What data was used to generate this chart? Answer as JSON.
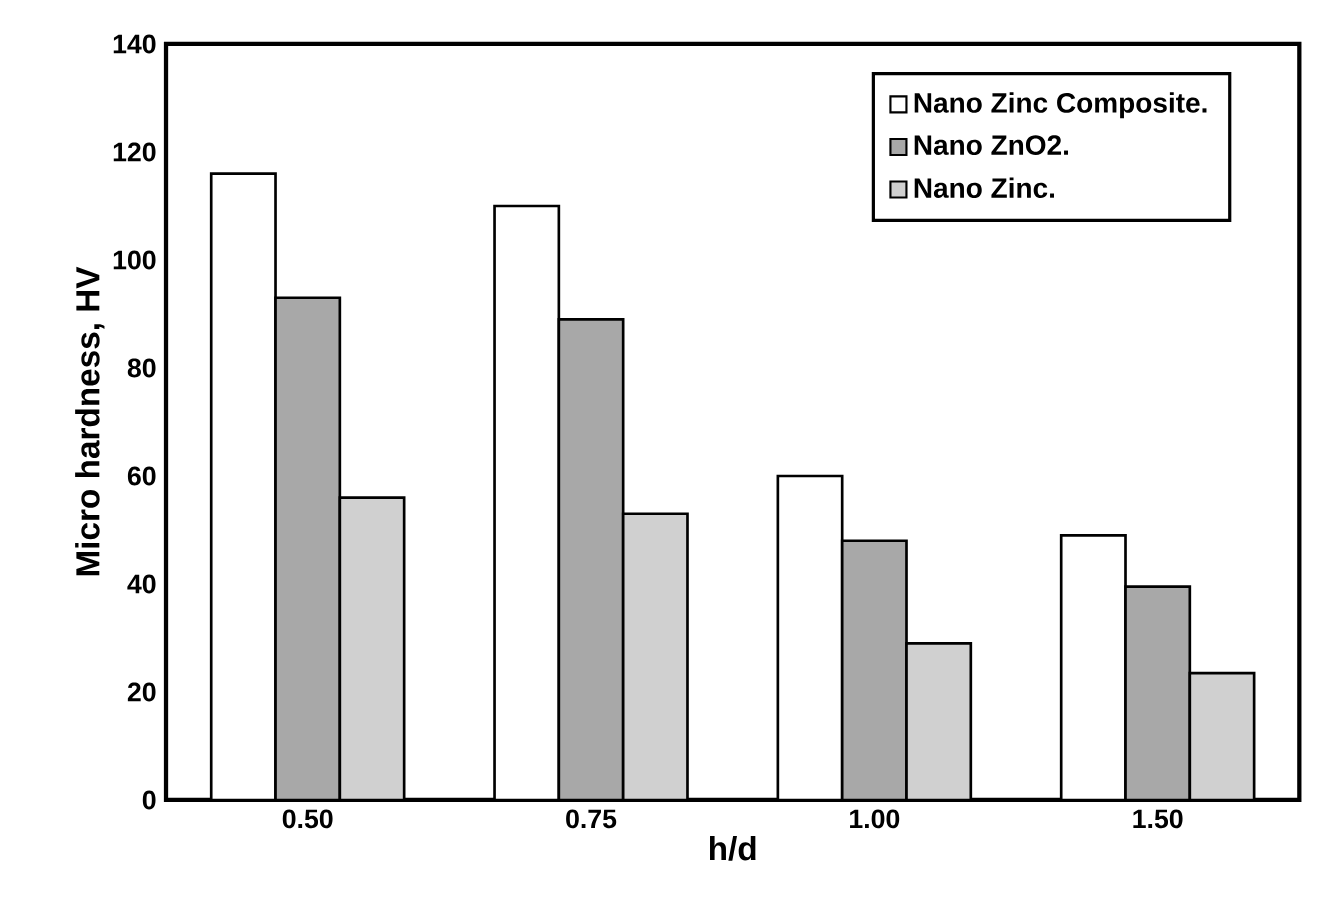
{
  "chart_data": {
    "type": "bar",
    "xlabel": "h/d",
    "ylabel": "Micro hardness, HV",
    "categories": [
      "0.50",
      "0.75",
      "1.00",
      "1.50"
    ],
    "series": [
      {
        "name": "Nano Zinc Composite.",
        "color": "#ffffff",
        "values": [
          116,
          110,
          60,
          49
        ]
      },
      {
        "name": "Nano ZnO2.",
        "color": "#a8a8a8",
        "values": [
          93,
          89,
          48,
          39.5
        ]
      },
      {
        "name": "Nano Zinc.",
        "color": "#d0d0d0",
        "values": [
          56,
          53,
          29,
          23.5
        ]
      }
    ],
    "ylim": [
      0,
      140
    ],
    "yticks": [
      0,
      20,
      40,
      60,
      80,
      100,
      120,
      140
    ],
    "grid": false,
    "legend": "top right"
  }
}
